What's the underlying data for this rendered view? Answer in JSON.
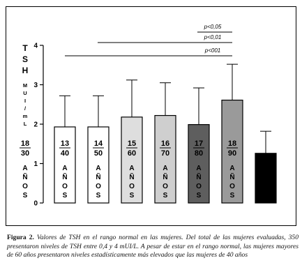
{
  "chart_data": {
    "type": "bar",
    "y_label": {
      "title": "TSH",
      "unit": "MUI/mL",
      "numerator": "18",
      "denominator": "30",
      "years": "AÑOS"
    },
    "categories": [
      {
        "numerator": "13",
        "denominator": "40",
        "years": "AÑOS"
      },
      {
        "numerator": "14",
        "denominator": "50",
        "years": "AÑOS"
      },
      {
        "numerator": "15",
        "denominator": "60",
        "years": "AÑOS"
      },
      {
        "numerator": "16",
        "denominator": "70",
        "years": "AÑOS"
      },
      {
        "numerator": "17",
        "denominator": "80",
        "years": "AÑOS"
      },
      {
        "numerator": "18",
        "denominator": "90",
        "years": "AÑOS"
      },
      null
    ],
    "values": [
      1.93,
      1.93,
      2.18,
      2.22,
      1.99,
      2.61,
      1.26
    ],
    "errors": [
      0.79,
      0.79,
      0.94,
      0.83,
      0.93,
      0.91,
      0.56
    ],
    "colors": [
      "#ffffff",
      "#ffffff",
      "#dedede",
      "#cfcfcf",
      "#5e5e5e",
      "#9a9a9a",
      "#000000"
    ],
    "ylim": [
      0,
      4
    ],
    "yticks": [
      0,
      1,
      2,
      3,
      4
    ],
    "annotations": [
      "p<0,05",
      "p<0,01",
      "p<001"
    ]
  },
  "caption": {
    "label": "Figura 2.",
    "text": "Valores de TSH en el rango normal en las mujeres. Del total de las mujeres evaluadas, 350 presentaron niveles de TSH entre 0,4 y 4 mUI/L. A pesar de estar en el rango normal, las mujeres mayores de 60 años presentaron niveles estadísticamente más elevados que las mujeres de 40 años"
  }
}
